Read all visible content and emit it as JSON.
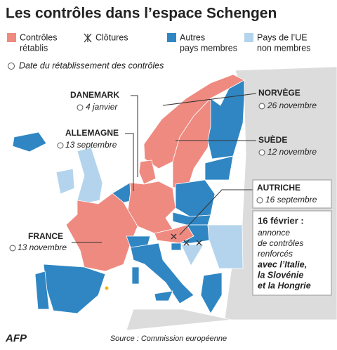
{
  "title": "Les contrôles dans l’espace Schengen",
  "legend": [
    {
      "lines": [
        "Contrôles",
        "rétablis"
      ],
      "color": "#ef8a80"
    },
    {
      "lines": [
        "Clôtures"
      ]
    },
    {
      "lines": [
        "Autres",
        "pays membres"
      ],
      "color": "#2f86c3"
    },
    {
      "lines": [
        "Pays de l’UE",
        "non membres"
      ],
      "color": "#b3d4ec"
    }
  ],
  "date_note": "Date du rétablissement des contrôles",
  "callouts": [
    {
      "country": "DANEMARK",
      "date": "4 janvier"
    },
    {
      "country": "NORVÈGE",
      "date": "26 novembre"
    },
    {
      "country": "ALLEMAGNE",
      "date": "13 septembre"
    },
    {
      "country": "SUÈDE",
      "date": "12 novembre"
    },
    {
      "country": "AUTRICHE",
      "date": "16 septembre"
    },
    {
      "country": "FRANCE",
      "date": "13 novembre"
    }
  ],
  "note": [
    "16 février :",
    "annonce",
    "de contrôles",
    "renforcés",
    "avec l’Italie,",
    "la Slovénie",
    "et la Hongrie"
  ],
  "source": "Source : Commission européenne",
  "logo": "AFP"
}
